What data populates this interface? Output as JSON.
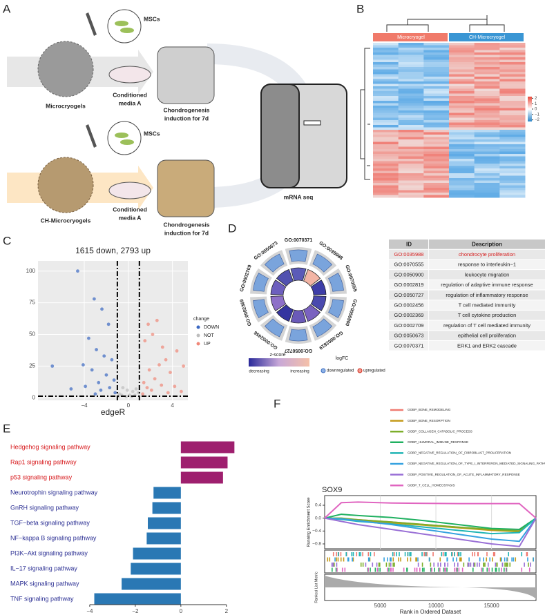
{
  "panel_labels": [
    "A",
    "B",
    "C",
    "D",
    "E",
    "F"
  ],
  "panel_a": {
    "top": {
      "cell": "MSCs",
      "scaffold": "Microcryogels",
      "media": [
        "Conditioned",
        "media A"
      ],
      "induction": [
        "Chondrogenesis",
        "induction for 7d"
      ]
    },
    "bottom": {
      "cell": "MSCs",
      "scaffold": "CH-Microcryogels",
      "media": [
        "Conditioned",
        "media A"
      ],
      "induction": [
        "Chondrogenesis",
        "induction for 7d"
      ]
    },
    "sequencing": "mRNA seq"
  },
  "panel_b": {
    "groups": [
      "Microcryogel",
      "CH-Microcryogel"
    ],
    "group_colors": [
      "#f07a6a",
      "#3a96d4"
    ],
    "legend_ticks": [
      2,
      1,
      0,
      {
        "value": -1,
        "label": "−1"
      },
      {
        "value": -2,
        "label": "−2"
      }
    ],
    "legend_lim": [
      -2.3,
      2.3
    ]
  },
  "panel_c": {
    "type": "scatter",
    "title": "1615 down, 2793 up",
    "x_label": "edgeR",
    "legend_title": "change",
    "xlim": [
      -8.2,
      5.4
    ],
    "ylim": [
      -2,
      108
    ],
    "xticks": [
      {
        "value": -4,
        "label": "−4"
      },
      0,
      4
    ],
    "yticks": [
      0,
      25,
      50,
      75,
      100
    ],
    "vlines": [
      -1,
      1
    ],
    "hline": 1.3,
    "series": [
      {
        "name": "DOWN",
        "color": "#3b68c2",
        "x": [
          -4.6,
          -3.1,
          -2.4,
          -1.8,
          -3.6,
          -2.9,
          -1.5,
          -2.2,
          -4.1,
          -6.9,
          -3.3,
          -2.0,
          -1.3,
          -2.7,
          -3.9,
          -1.7,
          -2.5,
          -5.2,
          -1.2,
          -3.0
        ],
        "values": [
          100,
          78,
          70,
          58,
          47,
          38,
          30,
          33,
          26,
          25,
          22,
          18,
          14,
          12,
          9,
          8,
          6,
          7,
          4,
          3
        ]
      },
      {
        "name": "NOT",
        "color": "#bdbdbd",
        "x": [
          -0.8,
          -0.5,
          -0.2,
          0.1,
          0.4,
          0.7,
          0.9,
          -0.6,
          0.3,
          -0.1,
          0.6,
          -0.9
        ],
        "values": [
          3,
          8,
          1,
          2,
          5,
          7,
          4,
          2,
          1,
          6,
          2,
          1
        ]
      },
      {
        "name": "UP",
        "color": "#f08778",
        "x": [
          2.6,
          1.8,
          3.1,
          2.2,
          1.5,
          4.4,
          3.4,
          2.8,
          1.9,
          3.8,
          5.0,
          2.4,
          1.4,
          3.0,
          4.2,
          1.7,
          2.1,
          3.6,
          4.8,
          1.3
        ],
        "values": [
          61,
          58,
          40,
          50,
          45,
          37,
          30,
          26,
          22,
          20,
          25,
          15,
          12,
          10,
          9,
          8,
          6,
          4,
          5,
          3
        ]
      }
    ]
  },
  "panel_d": {
    "circle_labels": [
      "GO:0070371",
      "GO:0035988",
      "GO:0070555",
      "GO:0050900",
      "GO:0002819",
      "GO:0050727",
      "GO:0002456",
      "GO:0002369",
      "GO:0002709",
      "GO:0050673"
    ],
    "zscore_title": "z-score",
    "zscore_low": "decreasing",
    "zscore_high": "increasing",
    "logfc_title": "logFC",
    "logfc_down": "downregulated",
    "logfc_up": "upregulated",
    "table": {
      "header": [
        "ID",
        "Description"
      ],
      "highlight_row": 0,
      "rows": [
        [
          "GO:0035988",
          "chondrocyte proliferation"
        ],
        [
          "GO:0070555",
          "response to interleukin−1"
        ],
        [
          "GO:0050900",
          "leukocyte migration"
        ],
        [
          "GO:0002819",
          "regulation of adaptive immune response"
        ],
        [
          "GO:0050727",
          "regulation of inflammatory response"
        ],
        [
          "GO:0002456",
          "T cell mediated immunity"
        ],
        [
          "GO:0002369",
          "T cell cytokine production"
        ],
        [
          "GO:0002709",
          "regulation of T cell mediated immunity"
        ],
        [
          "GO:0050673",
          "epithelial cell proliferation"
        ],
        [
          "GO:0070371",
          "ERK1 and ERK2 cascade"
        ]
      ]
    }
  },
  "panel_e": {
    "type": "hbar",
    "categories": [
      "Hedgehog signaling pathway",
      "Rap1 signaling pathway",
      "p53 signaling pathway",
      "Neurotrophin signaling pathway",
      "GnRH signaling pathway",
      "TGF−beta signaling pathway",
      "NF−kappa B signaling pathway",
      "PI3K−Akt signaling pathway",
      "IL−17 signaling pathway",
      "MAPK signaling pathway",
      "TNF signaling pathway"
    ],
    "values": [
      2.35,
      2.05,
      1.85,
      -1.2,
      -1.25,
      -1.45,
      -1.5,
      -2.1,
      -2.2,
      -2.6,
      -3.8
    ],
    "bar_colors": [
      "#9e1f6e",
      "#9e1f6e",
      "#9e1f6e",
      "#2a78b4",
      "#2a78b4",
      "#2a78b4",
      "#2a78b4",
      "#2a78b4",
      "#2a78b4",
      "#2a78b4",
      "#2a78b4"
    ],
    "label_colors": [
      "#d7191c",
      "#d7191c",
      "#d7191c",
      "#2b2f93",
      "#2b2f93",
      "#2b2f93",
      "#2b2f93",
      "#2b2f93",
      "#2b2f93",
      "#2b2f93",
      "#2b2f93"
    ],
    "xlim": [
      -4.3,
      2.4
    ],
    "xticks": [
      {
        "value": -4,
        "label": "−4"
      },
      {
        "value": -2,
        "label": "−2"
      },
      0,
      2
    ]
  },
  "panel_f": {
    "type": "line",
    "title": "SOX9",
    "y_label": "Running Enrichment Score",
    "metric_label": "Ranked List Metric",
    "x_label": "Rank in Ordered Dataset",
    "xlim": [
      0,
      19000
    ],
    "ylim": [
      -0.95,
      0.7
    ],
    "xticks": [
      5000,
      10000,
      15000
    ],
    "yticks": [
      0.4,
      {
        "value": 0,
        "label": "0.0"
      },
      {
        "value": -0.4,
        "label": "−0.4"
      },
      {
        "value": -0.8,
        "label": "−0.8"
      }
    ],
    "x": [
      0,
      1500,
      3000,
      6000,
      9000,
      12000,
      15000,
      17500,
      19000
    ],
    "series": [
      {
        "name": "GOBP_BONE_REMODELING",
        "color": "#f07a70",
        "values": [
          0,
          -0.02,
          -0.05,
          -0.12,
          -0.2,
          -0.28,
          -0.35,
          -0.38,
          0
        ]
      },
      {
        "name": "GOBP_BONE_RESORPTION",
        "color": "#c49a18",
        "values": [
          0,
          -0.03,
          -0.08,
          -0.15,
          -0.22,
          -0.3,
          -0.38,
          -0.42,
          0
        ]
      },
      {
        "name": "GOBP_COLLAGEN_CATABOLIC_PROCESS",
        "color": "#7cae2a",
        "values": [
          0,
          0.0,
          -0.05,
          -0.12,
          -0.2,
          -0.28,
          -0.35,
          -0.4,
          0
        ]
      },
      {
        "name": "GOBP_HUMORAL_IMMUNE_RESPONSE",
        "color": "#1fb060",
        "values": [
          0,
          0.12,
          0.08,
          0.02,
          -0.08,
          -0.2,
          -0.32,
          -0.35,
          0
        ]
      },
      {
        "name": "GOBP_NEGATIVE_REGULATION_OF_FIBROBLAST_PROLIFERATION",
        "color": "#20b5b5",
        "values": [
          0,
          -0.04,
          -0.1,
          -0.18,
          -0.28,
          -0.38,
          -0.48,
          -0.45,
          0
        ]
      },
      {
        "name": "GOBP_NEGATIVE_REGULATION_OF_TYPE_I_INTERFERON_MEDIATED_SIGNALING_PATHWAY",
        "color": "#36a2e0",
        "values": [
          0,
          -0.02,
          -0.08,
          -0.2,
          -0.35,
          -0.5,
          -0.65,
          -0.72,
          0
        ]
      },
      {
        "name": "GOBP_POSITIVE_REGULATION_OF_ACUTE_INFLAMMATORY_RESPONSE",
        "color": "#9a70d6",
        "values": [
          0,
          -0.1,
          -0.2,
          -0.35,
          -0.5,
          -0.65,
          -0.8,
          -0.88,
          0
        ]
      },
      {
        "name": "GOBP_T_CELL_HOMEOSTASIS",
        "color": "#e065c0",
        "values": [
          0,
          0.48,
          0.5,
          0.47,
          0.46,
          0.45,
          0.45,
          0.45,
          0
        ]
      }
    ]
  }
}
